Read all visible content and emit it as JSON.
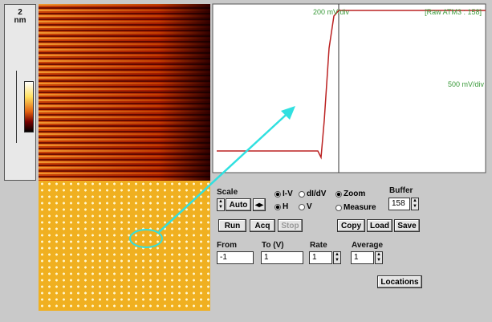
{
  "scale_panel": {
    "value": "2",
    "unit": "nm"
  },
  "graph": {
    "top_label": "200 mV/div",
    "source_label": "[Raw ATM3 : 158]",
    "right_label": "500 mV/div"
  },
  "controls": {
    "scale": {
      "label": "Scale",
      "button": "Auto"
    },
    "mode": {
      "options": [
        "I-V",
        "dI/dV"
      ],
      "selected": "I-V"
    },
    "direction": {
      "options": [
        "H",
        "V"
      ],
      "selected": "H"
    },
    "cursor": {
      "options": [
        "Zoom",
        "Measure"
      ],
      "selected": "Zoom"
    },
    "buffer": {
      "label": "Buffer",
      "value": "158"
    },
    "buttons": [
      "Run",
      "Acq",
      "Stop",
      "Copy",
      "Load",
      "Save"
    ],
    "fields": [
      {
        "label": "From",
        "value": "-1"
      },
      {
        "label": "To (V)",
        "value": "1"
      },
      {
        "label": "Rate",
        "value": "1"
      },
      {
        "label": "Average",
        "value": "1"
      }
    ],
    "locations": "Locations"
  }
}
